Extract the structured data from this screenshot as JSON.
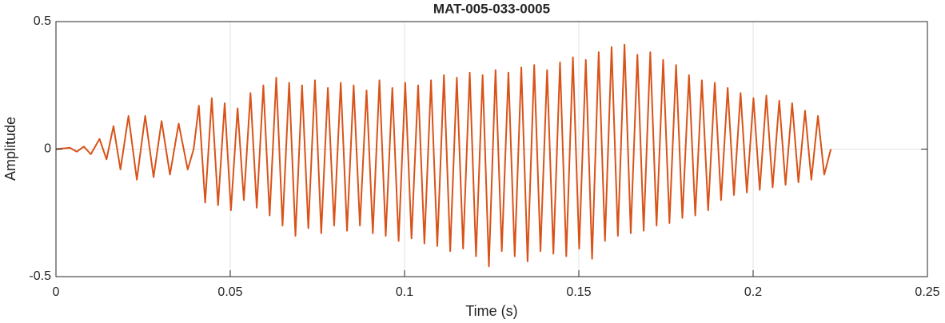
{
  "chart_data": {
    "type": "line",
    "title": "MAT-005-033-0005",
    "xlabel": "Time (s)",
    "ylabel": "Amplitude",
    "xlim": [
      0,
      0.25
    ],
    "ylim": [
      -0.5,
      0.5
    ],
    "xticks": [
      0,
      0.05,
      0.1,
      0.15,
      0.2,
      0.25
    ],
    "yticks": [
      -0.5,
      0,
      0.5
    ],
    "grid": true,
    "series": [
      {
        "color": "#d95319",
        "x": [
          0,
          0.004,
          0.006,
          0.008,
          0.01,
          0.0125,
          0.0145,
          0.0165,
          0.0185,
          0.0208,
          0.0232,
          0.0256,
          0.028,
          0.0303,
          0.0327,
          0.0352,
          0.0378,
          0.0395,
          0.041,
          0.0428,
          0.0447,
          0.0465,
          0.0484,
          0.0502,
          0.0521,
          0.0539,
          0.0558,
          0.0576,
          0.0595,
          0.0613,
          0.0632,
          0.065,
          0.0669,
          0.0687,
          0.0706,
          0.0724,
          0.0743,
          0.0761,
          0.078,
          0.0798,
          0.0817,
          0.0835,
          0.0854,
          0.0872,
          0.0891,
          0.0909,
          0.0928,
          0.0946,
          0.0965,
          0.0983,
          0.1002,
          0.102,
          0.1039,
          0.1057,
          0.1076,
          0.1094,
          0.1113,
          0.1131,
          0.115,
          0.1168,
          0.1187,
          0.1205,
          0.1224,
          0.1242,
          0.1261,
          0.1279,
          0.1298,
          0.1316,
          0.1335,
          0.1353,
          0.1372,
          0.139,
          0.1409,
          0.1427,
          0.1446,
          0.1464,
          0.1483,
          0.1501,
          0.152,
          0.1538,
          0.1557,
          0.1575,
          0.1594,
          0.1612,
          0.1631,
          0.1649,
          0.1668,
          0.1686,
          0.1705,
          0.1723,
          0.1742,
          0.176,
          0.1779,
          0.1797,
          0.1816,
          0.1834,
          0.1853,
          0.1871,
          0.189,
          0.1908,
          0.1927,
          0.1945,
          0.1964,
          0.1982,
          0.2001,
          0.2019,
          0.2038,
          0.2056,
          0.2075,
          0.2093,
          0.2112,
          0.213,
          0.2149,
          0.2167,
          0.2186,
          0.2204,
          0.2223
        ],
        "values": [
          0,
          0.005,
          -0.01,
          0.01,
          -0.02,
          0.04,
          -0.04,
          0.09,
          -0.08,
          0.13,
          -0.12,
          0.13,
          -0.11,
          0.11,
          -0.1,
          0.1,
          -0.08,
          0,
          0.17,
          -0.21,
          0.2,
          -0.22,
          0.18,
          -0.24,
          0.16,
          -0.2,
          0.22,
          -0.23,
          0.25,
          -0.26,
          0.28,
          -0.3,
          0.26,
          -0.34,
          0.25,
          -0.31,
          0.27,
          -0.33,
          0.24,
          -0.3,
          0.26,
          -0.32,
          0.25,
          -0.3,
          0.23,
          -0.33,
          0.27,
          -0.34,
          0.24,
          -0.36,
          0.26,
          -0.35,
          0.25,
          -0.37,
          0.27,
          -0.38,
          0.29,
          -0.4,
          0.28,
          -0.39,
          0.3,
          -0.42,
          0.29,
          -0.46,
          0.31,
          -0.4,
          0.3,
          -0.42,
          0.32,
          -0.44,
          0.33,
          -0.4,
          0.31,
          -0.41,
          0.34,
          -0.42,
          0.36,
          -0.39,
          0.35,
          -0.43,
          0.38,
          -0.36,
          0.4,
          -0.34,
          0.41,
          -0.33,
          0.37,
          -0.32,
          0.38,
          -0.3,
          0.35,
          -0.29,
          0.33,
          -0.27,
          0.29,
          -0.26,
          0.27,
          -0.24,
          0.26,
          -0.2,
          0.24,
          -0.18,
          0.22,
          -0.17,
          0.2,
          -0.16,
          0.21,
          -0.15,
          0.19,
          -0.14,
          0.18,
          -0.13,
          0.15,
          -0.12,
          0.13,
          -0.1,
          0
        ]
      }
    ]
  }
}
